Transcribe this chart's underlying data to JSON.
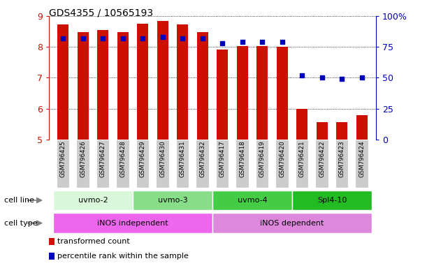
{
  "title": "GDS4355 / 10565193",
  "samples": [
    "GSM796425",
    "GSM796426",
    "GSM796427",
    "GSM796428",
    "GSM796429",
    "GSM796430",
    "GSM796431",
    "GSM796432",
    "GSM796417",
    "GSM796418",
    "GSM796419",
    "GSM796420",
    "GSM796421",
    "GSM796422",
    "GSM796423",
    "GSM796424"
  ],
  "transformed_count": [
    8.72,
    8.48,
    8.55,
    8.47,
    8.76,
    8.85,
    8.72,
    8.47,
    7.92,
    8.02,
    8.03,
    8.01,
    5.98,
    5.57,
    5.57,
    5.79
  ],
  "percentile_rank": [
    82,
    82,
    82,
    82,
    82,
    83,
    82,
    82,
    78,
    79,
    79,
    79,
    52,
    50,
    49,
    50
  ],
  "ylim_left": [
    5,
    9
  ],
  "ylim_right": [
    0,
    100
  ],
  "yticks_left": [
    5,
    6,
    7,
    8,
    9
  ],
  "yticks_right": [
    0,
    25,
    50,
    75,
    100
  ],
  "ytick_labels_right": [
    "0",
    "25",
    "50",
    "75",
    "100%"
  ],
  "cell_lines": [
    {
      "label": "uvmo-2",
      "start": 0,
      "end": 3,
      "color": "#d9f7d9"
    },
    {
      "label": "uvmo-3",
      "start": 4,
      "end": 7,
      "color": "#88dd88"
    },
    {
      "label": "uvmo-4",
      "start": 8,
      "end": 11,
      "color": "#44cc44"
    },
    {
      "label": "Spl4-10",
      "start": 12,
      "end": 15,
      "color": "#22bb22"
    }
  ],
  "cell_types": [
    {
      "label": "iNOS independent",
      "start": 0,
      "end": 7,
      "color": "#ee66ee"
    },
    {
      "label": "iNOS dependent",
      "start": 8,
      "end": 15,
      "color": "#dd88dd"
    }
  ],
  "bar_color": "#cc1100",
  "dot_color": "#0000bb",
  "background_color": "#ffffff",
  "bar_width": 0.55,
  "xtick_bg_color": "#cccccc",
  "label_color_left": "#cc1100",
  "label_color_right": "#0000bb",
  "cell_line_label": "cell line",
  "cell_type_label": "cell type",
  "legend_items": [
    {
      "label": "transformed count",
      "color": "#cc1100"
    },
    {
      "label": "percentile rank within the sample",
      "color": "#0000bb"
    }
  ]
}
